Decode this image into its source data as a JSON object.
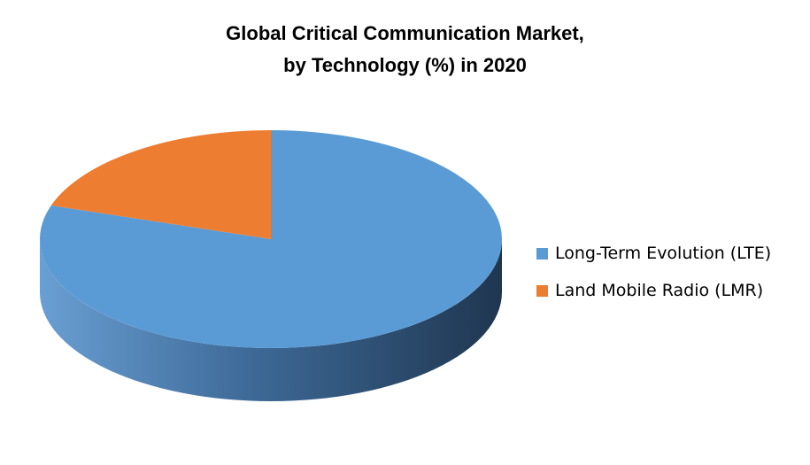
{
  "chart_data": {
    "type": "pie",
    "style": "3d",
    "title_lines": [
      "Global Critical  Communication Market,",
      "by Technology (%) in 2020"
    ],
    "series": [
      {
        "name": "Long-Term Evolution (LTE)",
        "value": 80,
        "color": "#5b9bd5"
      },
      {
        "name": "Land Mobile Radio (LMR)",
        "value": 20,
        "color": "#ed7d31"
      }
    ],
    "legend_position": "right"
  }
}
